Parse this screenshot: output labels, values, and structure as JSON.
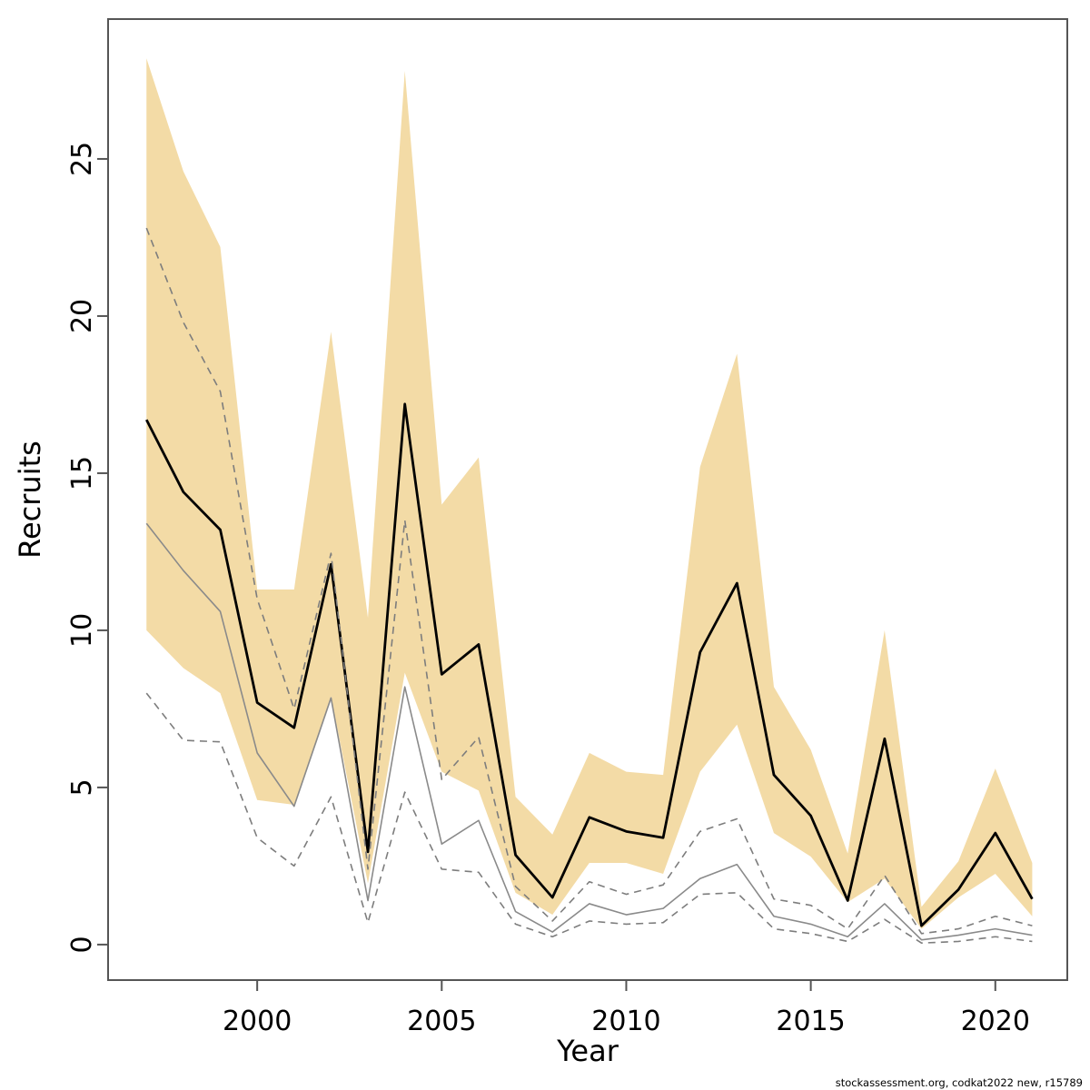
{
  "page": {
    "background": "#ffffff"
  },
  "footer": {
    "credit": "stockassessment.org, codkat2022 new, r15789"
  },
  "chart_data": {
    "type": "line",
    "title": "",
    "xlabel": "Year",
    "ylabel": "Recruits",
    "x": [
      1997,
      1998,
      1999,
      2000,
      2001,
      2002,
      2003,
      2004,
      2005,
      2006,
      2007,
      2008,
      2009,
      2010,
      2011,
      2012,
      2013,
      2014,
      2015,
      2016,
      2017,
      2018,
      2019,
      2020,
      2021
    ],
    "xticks": [
      2000,
      2005,
      2010,
      2015,
      2020
    ],
    "yticks": [
      0,
      5,
      10,
      15,
      20,
      25
    ],
    "xlim": [
      1995.96,
      2021.95
    ],
    "ylim": [
      -1.13,
      29.45
    ],
    "grid": false,
    "legend_position": "none",
    "colors": {
      "band": "#F3DBA6",
      "current": "#000000",
      "previous": "#8a8a8a",
      "previous_ci": "#7d7d7d",
      "axis": "#555555"
    },
    "band": {
      "name": "ci-current-assessment",
      "upper": [
        28.2,
        24.6,
        22.2,
        11.3,
        11.3,
        19.5,
        10.4,
        27.8,
        14.0,
        15.5,
        4.7,
        3.5,
        6.1,
        5.5,
        5.4,
        15.2,
        18.8,
        8.2,
        6.2,
        2.9,
        10.0,
        1.2,
        2.65,
        5.6,
        2.6
      ],
      "lower": [
        10.0,
        8.8,
        8.0,
        4.6,
        4.45,
        7.9,
        1.95,
        8.65,
        5.5,
        4.9,
        1.65,
        0.95,
        2.6,
        2.6,
        2.25,
        5.5,
        7.0,
        3.55,
        2.8,
        1.35,
        2.1,
        0.5,
        1.5,
        2.25,
        0.9
      ]
    },
    "series": [
      {
        "name": "estimate-current",
        "style": "solid",
        "color_key": "current",
        "width": 2.8,
        "values": [
          16.7,
          14.4,
          13.2,
          7.7,
          6.9,
          12.1,
          2.95,
          17.2,
          8.6,
          9.55,
          2.85,
          1.5,
          4.05,
          3.6,
          3.4,
          9.3,
          11.5,
          5.4,
          4.1,
          1.4,
          6.55,
          0.6,
          1.75,
          3.55,
          1.45
        ]
      },
      {
        "name": "estimate-previous",
        "style": "solid",
        "color_key": "previous",
        "width": 1.6,
        "values": [
          13.4,
          11.9,
          10.6,
          6.1,
          4.4,
          7.85,
          1.4,
          8.2,
          3.2,
          3.95,
          1.05,
          0.4,
          1.3,
          0.95,
          1.15,
          2.1,
          2.55,
          0.9,
          0.65,
          0.25,
          1.3,
          0.15,
          0.3,
          0.5,
          0.3
        ]
      },
      {
        "name": "ci-upper-previous",
        "style": "dashed",
        "color_key": "previous_ci",
        "width": 1.6,
        "values": [
          22.8,
          19.8,
          17.6,
          11.0,
          7.5,
          12.45,
          2.4,
          13.5,
          5.25,
          6.6,
          1.85,
          0.75,
          2.0,
          1.6,
          1.9,
          3.6,
          4.0,
          1.45,
          1.25,
          0.5,
          2.2,
          0.35,
          0.5,
          0.9,
          0.6
        ]
      },
      {
        "name": "ci-lower-previous",
        "style": "dashed",
        "color_key": "previous_ci",
        "width": 1.6,
        "values": [
          8.0,
          6.5,
          6.45,
          3.4,
          2.5,
          4.7,
          0.7,
          4.85,
          2.4,
          2.3,
          0.65,
          0.25,
          0.75,
          0.65,
          0.7,
          1.6,
          1.65,
          0.5,
          0.35,
          0.1,
          0.8,
          0.05,
          0.1,
          0.25,
          0.1
        ]
      }
    ]
  }
}
